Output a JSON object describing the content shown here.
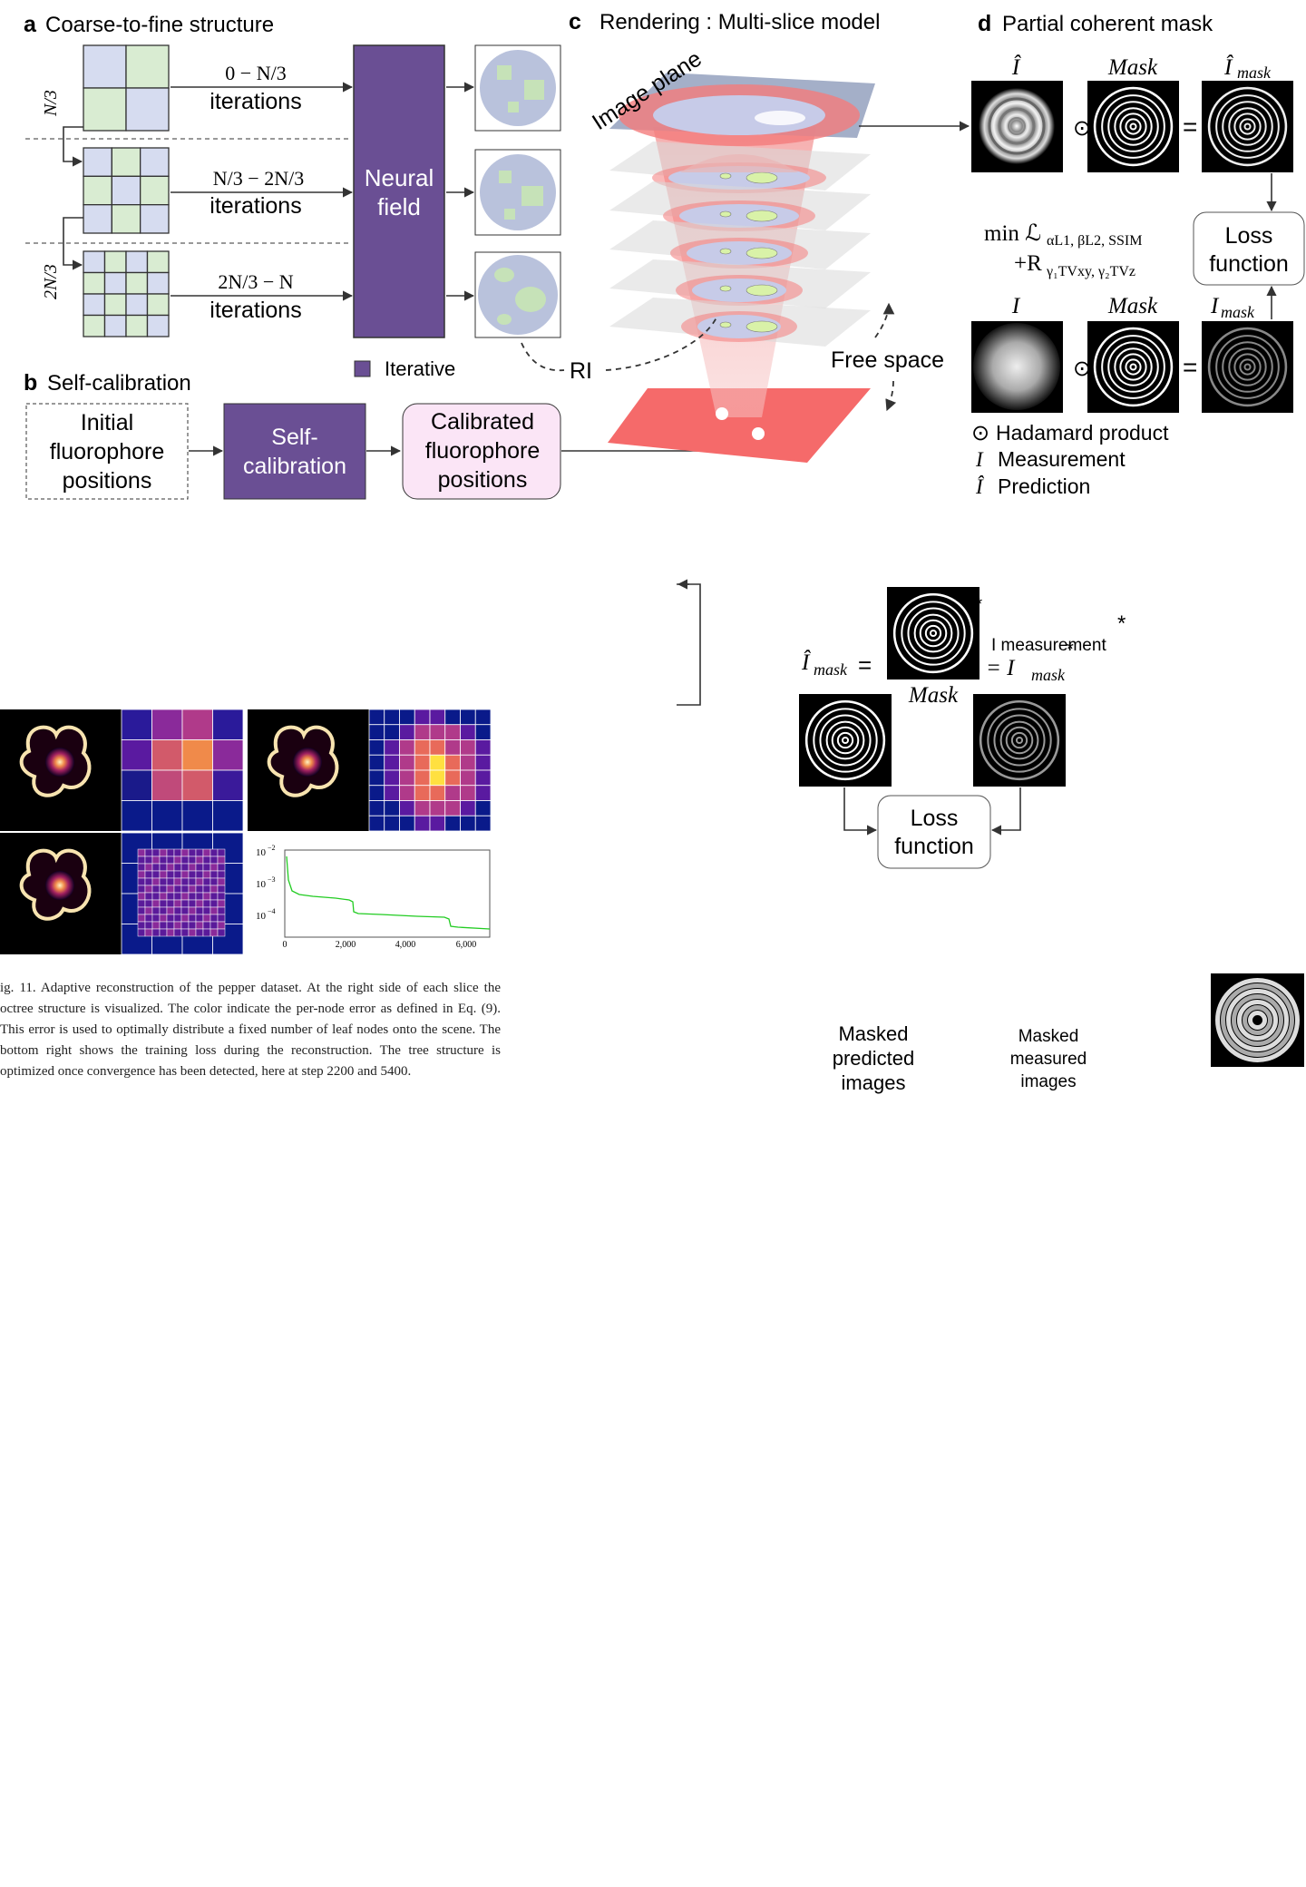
{
  "panel_a": {
    "letter": "a",
    "title": "Coarse-to-fine structure",
    "stages": [
      {
        "range": "0 − N/3",
        "label": "iterations",
        "grid": 2
      },
      {
        "range": "N/3 − 2N/3",
        "label": "iterations",
        "grid": 3
      },
      {
        "range": "2N/3 − N",
        "label": "iterations",
        "grid": 4
      }
    ],
    "side_labels": [
      "N/3",
      "2N/3"
    ],
    "box": [
      "Neural",
      "field"
    ],
    "legend": "Iterative"
  },
  "panel_b": {
    "letter": "b",
    "title": "Self-calibration",
    "initial": [
      "Initial",
      "fluorophore",
      "positions"
    ],
    "calib": [
      "Self-",
      "calibration"
    ],
    "calibrated": [
      "Calibrated",
      "fluorophore",
      "positions"
    ]
  },
  "panel_c": {
    "letter": "c",
    "title": "Rendering : Multi-slice model",
    "image_plane": "Image plane",
    "free_space": "Free space",
    "ri": "RI"
  },
  "panel_d": {
    "letter": "d",
    "title": "Partial coherent mask",
    "top_labels": [
      "Î",
      "Mask",
      "Î",
      "mask"
    ],
    "bottom_labels": [
      "I",
      "Mask",
      "I",
      "mask"
    ],
    "odot": "⊙",
    "eq": "=",
    "formula_line1": "min ℒ",
    "formula_sub1": "αL1, βL2, SSIM",
    "formula_line2": "+R",
    "formula_sub2": "γ₁TVxy, γ₂TVz",
    "loss": [
      "Loss",
      "function"
    ],
    "legend": [
      {
        "sym": "⊙",
        "text": "Hadamard product"
      },
      {
        "sym": "I",
        "text": "Measurement"
      },
      {
        "sym": "Î",
        "text": "Prediction"
      }
    ]
  },
  "lower_right": {
    "mask_label": "Mask",
    "i_mask_hat": "Î",
    "i_mask": "= I",
    "sub_mask": "mask",
    "measurement": "I  measurement",
    "asterisk": "*",
    "loss": [
      "Loss",
      "function"
    ],
    "masked_pred": [
      "Masked",
      "predicted",
      "images"
    ],
    "masked_meas": [
      "Masked",
      "measured",
      "images"
    ]
  },
  "figure11": {
    "plot": {
      "y_ticks": [
        "10",
        "10",
        "10"
      ],
      "y_exps": [
        "−2",
        "−3",
        "−4"
      ],
      "x_ticks": [
        "0",
        "2,000",
        "4,000",
        "6,000"
      ]
    },
    "caption": "ig. 11.  Adaptive reconstruction of the pepper dataset. At the right side of each slice the octree structure is visualized. The color indicate the per-node error as defined in Eq. (9). This error is used to optimally distribute a fixed number of leaf nodes onto the scene. The bottom right shows the training loss during the reconstruction. The tree structure is optimized once convergence has been detected, here at step 2200 and 5400."
  },
  "colors": {
    "purple": "#6a4f94",
    "grid_blue": "#d6dcf0",
    "grid_green": "#d9ecd2",
    "cone_red": "#f08080",
    "plane_blue": "#9aa6c2",
    "pink_box": "#fbe5f6"
  }
}
